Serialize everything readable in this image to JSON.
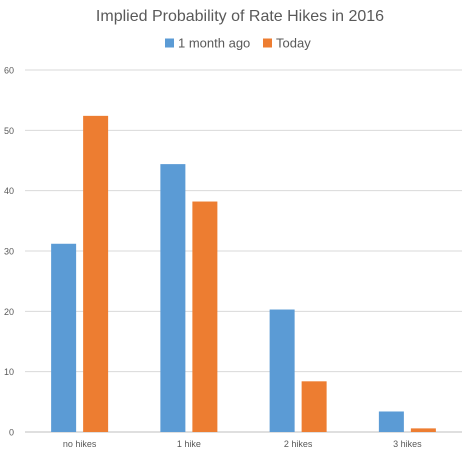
{
  "chart_data": {
    "type": "bar",
    "title": "Implied Probability of Rate Hikes in 2016",
    "categories": [
      "no hikes",
      "1 hike",
      "2 hikes",
      "3 hikes"
    ],
    "series": [
      {
        "name": "1 month ago",
        "values": [
          31.2,
          44.4,
          20.3,
          3.4
        ],
        "color": "#5B9BD5"
      },
      {
        "name": "Today",
        "values": [
          52.4,
          38.2,
          8.4,
          0.6
        ],
        "color": "#ED7D31"
      }
    ],
    "ylim": [
      0,
      60
    ],
    "yticks": [
      0,
      10,
      20,
      30,
      40,
      50,
      60
    ],
    "grid": true,
    "legend": "top",
    "xlabel": "",
    "ylabel": ""
  }
}
